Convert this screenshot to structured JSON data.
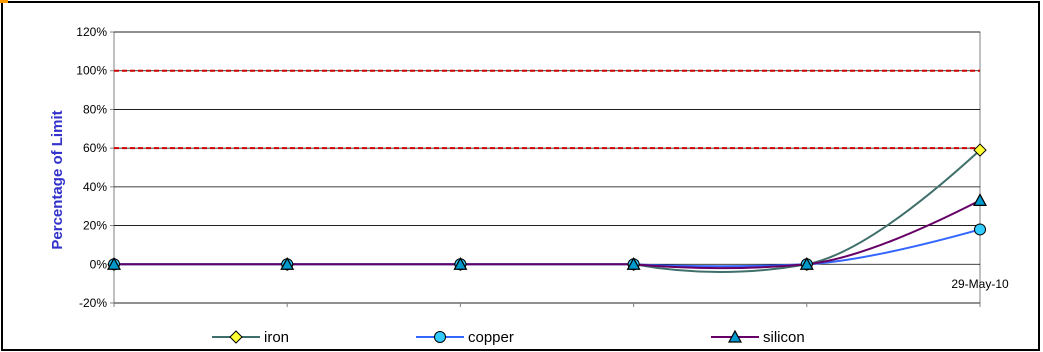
{
  "chart_data": {
    "type": "line",
    "title": "",
    "xlabel": "",
    "ylabel": "Percentage of Limit",
    "ylim": [
      -20,
      120
    ],
    "yticks": [
      "-20%",
      "0%",
      "20%",
      "40%",
      "60%",
      "80%",
      "100%",
      "120%"
    ],
    "x": [
      1,
      2,
      3,
      4,
      5,
      6
    ],
    "x_tick_labels": [
      "",
      "",
      "",
      "",
      "",
      "29-May-10"
    ],
    "grid": true,
    "legend_position": "bottom",
    "reference_lines": [
      {
        "value": 60,
        "color": "#cc0000",
        "style": "dashed"
      },
      {
        "value": 100,
        "color": "#cc0000",
        "style": "dashed"
      }
    ],
    "series": [
      {
        "name": "iron",
        "values": [
          0,
          0,
          0,
          0,
          0,
          59
        ],
        "color": "#3f6f6a",
        "marker": "diamond",
        "marker_color": "#ffff33",
        "dip": -4
      },
      {
        "name": "copper",
        "values": [
          0,
          0,
          0,
          0,
          0,
          18
        ],
        "color": "#3366ff",
        "marker": "circle",
        "marker_color": "#33ccff",
        "dip": -1
      },
      {
        "name": "silicon",
        "values": [
          0,
          0,
          0,
          0,
          0,
          33
        ],
        "color": "#660066",
        "marker": "triangle",
        "marker_color": "#0099cc",
        "dip": -2
      }
    ]
  }
}
